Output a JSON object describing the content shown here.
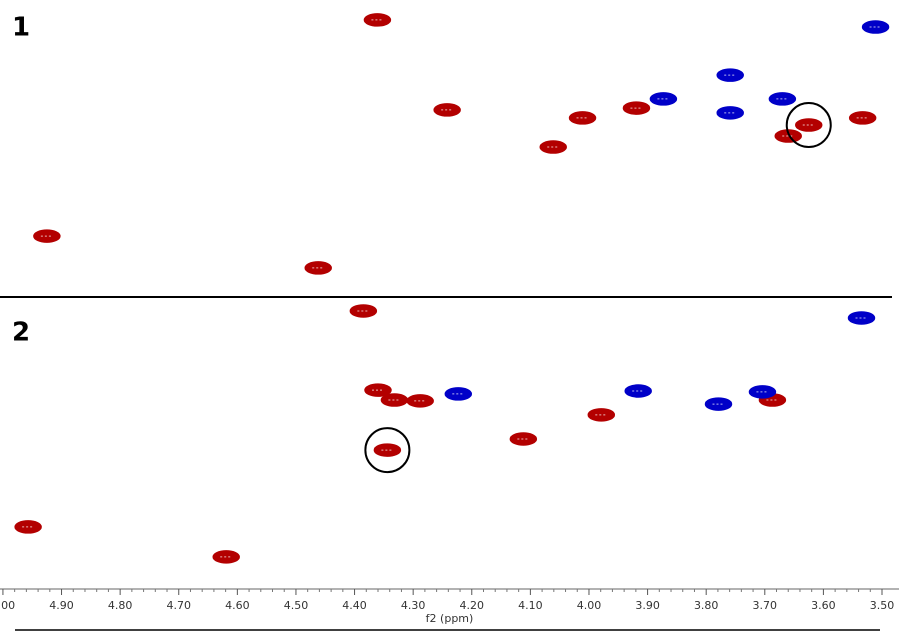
{
  "chart_data": [
    {
      "type": "scatter",
      "label": "1",
      "xlim": [
        5.005,
        3.471
      ],
      "ylim": [
        0,
        100
      ],
      "series": [
        {
          "color": "#b30000",
          "x": [
            4.361,
            4.242,
            4.462,
            4.925,
            4.061,
            4.011,
            3.919,
            3.66,
            3.625,
            3.533
          ],
          "y": [
            93.3,
            63,
            9.8,
            20.5,
            50.5,
            60.3,
            63.6,
            54.2,
            57.9,
            60.3
          ]
        },
        {
          "color": "#0000c8",
          "x": [
            3.511,
            3.759,
            3.873,
            3.759,
            3.67
          ],
          "y": [
            90.9,
            74.7,
            66.7,
            62,
            66.7
          ]
        }
      ],
      "highlight": {
        "series": 0,
        "index": 8
      }
    },
    {
      "type": "scatter",
      "label": "2",
      "xlim": [
        5.005,
        3.471
      ],
      "ylim": [
        0,
        100
      ],
      "xlabel": "f2 (ppm)",
      "xticks": [
        {
          "value": 5.0,
          "label": "5.00"
        },
        {
          "value": 4.9,
          "label": "4.90"
        },
        {
          "value": 4.8,
          "label": "4.80"
        },
        {
          "value": 4.7,
          "label": "4.70"
        },
        {
          "value": 4.6,
          "label": "4.60"
        },
        {
          "value": 4.5,
          "label": "4.50"
        },
        {
          "value": 4.4,
          "label": "4.40"
        },
        {
          "value": 4.3,
          "label": "4.30"
        },
        {
          "value": 4.2,
          "label": "4.20"
        },
        {
          "value": 4.1,
          "label": "4.10"
        },
        {
          "value": 4.0,
          "label": "4.00"
        },
        {
          "value": 3.9,
          "label": "3.90"
        },
        {
          "value": 3.8,
          "label": "3.80"
        },
        {
          "value": 3.7,
          "label": "3.70"
        },
        {
          "value": 3.6,
          "label": "3.60"
        },
        {
          "value": 3.5,
          "label": "3.50"
        }
      ],
      "series": [
        {
          "color": "#b30000",
          "x": [
            4.385,
            4.36,
            4.332,
            4.288,
            4.957,
            4.619,
            4.344,
            4.112,
            3.979,
            3.687
          ],
          "y": [
            95.2,
            68,
            64.6,
            64.3,
            21,
            10.7,
            47.4,
            51.2,
            59.5,
            64.6
          ]
        },
        {
          "color": "#0000c8",
          "x": [
            3.535,
            4.223,
            3.916,
            3.779,
            3.704
          ],
          "y": [
            92.8,
            66.7,
            67.7,
            63.2,
            67.4
          ]
        }
      ],
      "highlight": {
        "series": 0,
        "index": 6
      }
    }
  ]
}
